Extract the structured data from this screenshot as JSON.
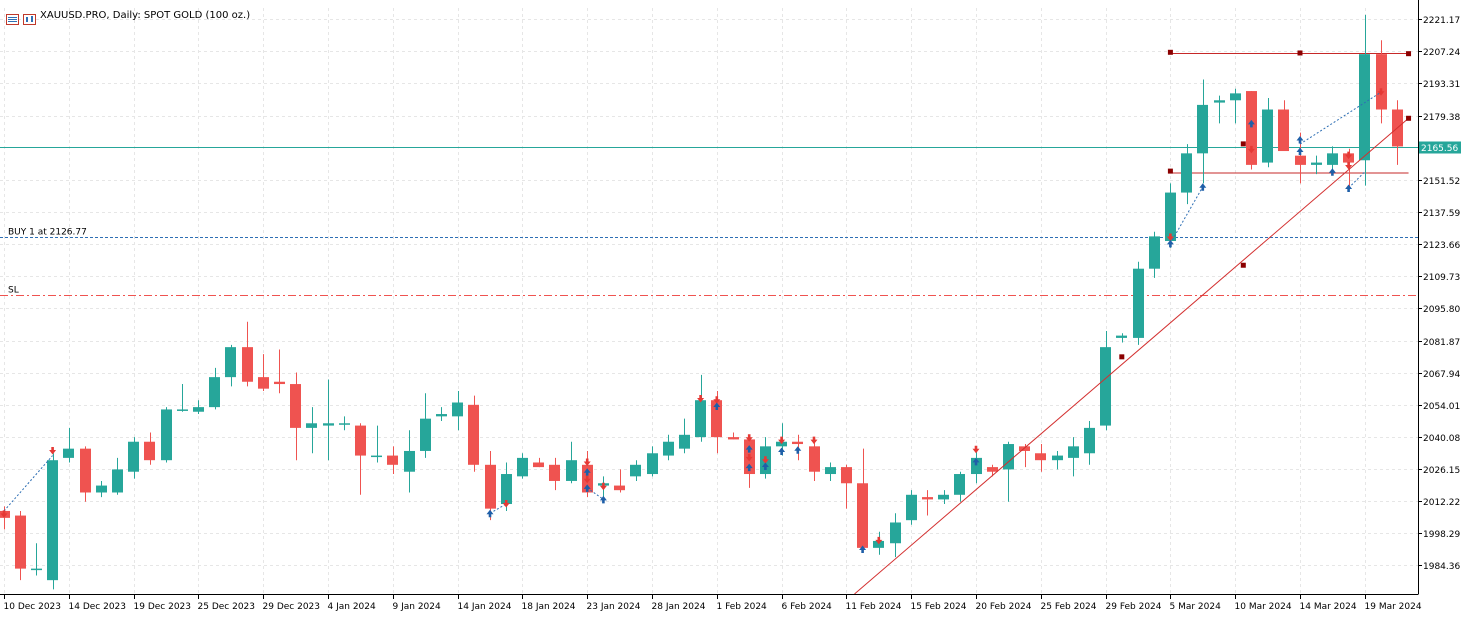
{
  "window": {
    "title": "XAUUSD.PRO, Daily:  SPOT GOLD (100 oz.)"
  },
  "icons": [
    "chart-window-icon",
    "chart-type-icon"
  ],
  "colors": {
    "bull": "#26a69a",
    "bear": "#ef5350",
    "grid": "#e6e6e6",
    "price_line": "#26a69a",
    "buy_line": "#2e6fb4",
    "sl_line": "#ef5350",
    "trendline": "#d32f2f",
    "level_line": "#c62828",
    "axis": "#000000"
  },
  "chart_data": {
    "type": "candlestick",
    "symbol": "XAUUSD.PRO",
    "timeframe": "Daily",
    "ylim": [
      1972,
      2226
    ],
    "y_ticks": [
      "2221.17",
      "2207.24",
      "2193.31",
      "2179.38",
      "2165.56",
      "2151.52",
      "2137.59",
      "2123.66",
      "2109.73",
      "2095.80",
      "2081.87",
      "2067.94",
      "2054.01",
      "2040.08",
      "2026.15",
      "2012.22",
      "1998.29",
      "1984.36"
    ],
    "x_ticks": [
      {
        "label": "10 Dec 2023",
        "index": 0
      },
      {
        "label": "14 Dec 2023",
        "index": 4
      },
      {
        "label": "19 Dec 2023",
        "index": 8
      },
      {
        "label": "25 Dec 2023",
        "index": 12
      },
      {
        "label": "29 Dec 2023",
        "index": 16
      },
      {
        "label": "4 Jan 2024",
        "index": 20
      },
      {
        "label": "9 Jan 2024",
        "index": 24
      },
      {
        "label": "14 Jan 2024",
        "index": 28
      },
      {
        "label": "18 Jan 2024",
        "index": 32
      },
      {
        "label": "23 Jan 2024",
        "index": 36
      },
      {
        "label": "28 Jan 2024",
        "index": 40
      },
      {
        "label": "1 Feb 2024",
        "index": 44
      },
      {
        "label": "6 Feb 2024",
        "index": 48
      },
      {
        "label": "11 Feb 2024",
        "index": 52
      },
      {
        "label": "15 Feb 2024",
        "index": 56
      },
      {
        "label": "20 Feb 2024",
        "index": 60
      },
      {
        "label": "25 Feb 2024",
        "index": 64
      },
      {
        "label": "29 Feb 2024",
        "index": 68
      },
      {
        "label": "5 Mar 2024",
        "index": 72
      },
      {
        "label": "10 Mar 2024",
        "index": 76
      },
      {
        "label": "14 Mar 2024",
        "index": 80
      },
      {
        "label": "19 Mar 2024",
        "index": 84
      }
    ],
    "candles": [
      [
        2008,
        2010,
        2000,
        2005
      ],
      [
        2006,
        2008,
        1978,
        1983
      ],
      [
        1983,
        1994,
        1980,
        1983
      ],
      [
        1978,
        2033,
        1974,
        2030
      ],
      [
        2031,
        2044,
        2029,
        2035
      ],
      [
        2035,
        2036,
        2012,
        2016
      ],
      [
        2016,
        2021,
        2014,
        2019
      ],
      [
        2016,
        2031,
        2015,
        2026
      ],
      [
        2025,
        2040,
        2022,
        2038
      ],
      [
        2038,
        2042,
        2028,
        2030
      ],
      [
        2030,
        2053,
        2029,
        2052
      ],
      [
        2052,
        2063,
        2051,
        2052
      ],
      [
        2051,
        2056,
        2050,
        2053
      ],
      [
        2053,
        2070,
        2052,
        2066
      ],
      [
        2066,
        2080,
        2062,
        2079
      ],
      [
        2079,
        2090,
        2062,
        2064
      ],
      [
        2066,
        2076,
        2060,
        2061
      ],
      [
        2064,
        2078,
        2059,
        2063
      ],
      [
        2063,
        2068,
        2030,
        2044
      ],
      [
        2044,
        2053,
        2033,
        2046
      ],
      [
        2045,
        2065,
        2030,
        2046
      ],
      [
        2046,
        2049,
        2043,
        2046
      ],
      [
        2045,
        2046,
        2015,
        2032
      ],
      [
        2032,
        2045,
        2029,
        2032
      ],
      [
        2032,
        2036,
        2024,
        2028
      ],
      [
        2025,
        2043,
        2016,
        2034
      ],
      [
        2034,
        2059,
        2031,
        2048
      ],
      [
        2049,
        2053,
        2047,
        2050
      ],
      [
        2049,
        2060,
        2043,
        2055
      ],
      [
        2054,
        2058,
        2025,
        2028
      ],
      [
        2028,
        2034,
        2004,
        2009
      ],
      [
        2011,
        2029,
        2008,
        2024
      ],
      [
        2023,
        2033,
        2022,
        2031
      ],
      [
        2029,
        2031,
        2027,
        2027
      ],
      [
        2028,
        2031,
        2017,
        2021
      ],
      [
        2021,
        2038,
        2020,
        2030
      ],
      [
        2028,
        2034,
        2014,
        2016
      ],
      [
        2019,
        2023,
        2014,
        2020
      ],
      [
        2019,
        2026,
        2016,
        2017
      ],
      [
        2023,
        2030,
        2021,
        2028
      ],
      [
        2024,
        2036,
        2023,
        2033
      ],
      [
        2032,
        2041,
        2030,
        2038
      ],
      [
        2035,
        2048,
        2033,
        2041
      ],
      [
        2040,
        2067,
        2038,
        2056
      ],
      [
        2056,
        2060,
        2033,
        2040
      ],
      [
        2040,
        2042,
        2039,
        2039
      ],
      [
        2039,
        2041,
        2018,
        2024
      ],
      [
        2024,
        2040,
        2022,
        2036
      ],
      [
        2036,
        2046,
        2032,
        2038
      ],
      [
        2038,
        2041,
        2030,
        2037
      ],
      [
        2036,
        2039,
        2021,
        2025
      ],
      [
        2024,
        2029,
        2021,
        2027
      ],
      [
        2027,
        2028,
        2009,
        2020
      ],
      [
        2020,
        2035,
        1991,
        1992
      ],
      [
        1992,
        1999,
        1989,
        1995
      ],
      [
        1994,
        2007,
        1988,
        2003
      ],
      [
        2004,
        2017,
        2002,
        2015
      ],
      [
        2014,
        2017,
        2006,
        2013
      ],
      [
        2013,
        2017,
        2011,
        2015
      ],
      [
        2015,
        2025,
        2012,
        2024
      ],
      [
        2024,
        2036,
        2020,
        2031
      ],
      [
        2027,
        2028,
        2023,
        2025
      ],
      [
        2026,
        2038,
        2012,
        2037
      ],
      [
        2036,
        2037,
        2027,
        2034
      ],
      [
        2033,
        2037,
        2025,
        2030
      ],
      [
        2030,
        2034,
        2026,
        2032
      ],
      [
        2031,
        2040,
        2023,
        2036
      ],
      [
        2033,
        2047,
        2028,
        2044
      ],
      [
        2045,
        2086,
        2043,
        2079
      ],
      [
        2083,
        2085,
        2081,
        2084
      ],
      [
        2083,
        2116,
        2080,
        2113
      ],
      [
        2113,
        2129,
        2109,
        2127
      ],
      [
        2125,
        2150,
        2122,
        2146
      ],
      [
        2146,
        2167,
        2141,
        2163
      ],
      [
        2163,
        2195,
        2150,
        2184
      ],
      [
        2185,
        2188,
        2176,
        2186
      ],
      [
        2186,
        2191,
        2176,
        2189
      ],
      [
        2190,
        2190,
        2156,
        2158
      ],
      [
        2159,
        2187,
        2157,
        2182
      ],
      [
        2182,
        2186,
        2164,
        2164
      ],
      [
        2162,
        2172,
        2150,
        2158
      ],
      [
        2158,
        2162,
        2154,
        2159
      ],
      [
        2158,
        2166,
        2155,
        2163
      ],
      [
        2163,
        2165,
        2148,
        2159
      ],
      [
        2160,
        2223,
        2149,
        2206
      ],
      [
        2206,
        2212,
        2176,
        2182
      ],
      [
        2182,
        2186,
        2158,
        2166
      ]
    ],
    "price_line": {
      "value": 2165.56,
      "label": "2165.56"
    },
    "buy_line": {
      "value": 2126.77,
      "label": "BUY 1 at 2126.77"
    },
    "sl_line": {
      "value": 2101.5,
      "label": "SL"
    },
    "trendline": {
      "from": {
        "index": 52.5,
        "value": 1972
      },
      "to": {
        "index": 86.7,
        "value": 2178.2
      }
    },
    "levels": [
      {
        "from_index": 72,
        "to_index": 86.7,
        "value": 2206.3
      },
      {
        "from_index": 72,
        "to_index": 86.7,
        "value": 2154.5
      }
    ],
    "level_points": [
      {
        "index": 72,
        "value": 2206.8
      },
      {
        "index": 80,
        "value": 2206.5
      },
      {
        "index": 86.7,
        "value": 2206.2
      },
      {
        "index": 72,
        "value": 2155.3
      },
      {
        "index": 76.5,
        "value": 2167.1
      },
      {
        "index": 76.5,
        "value": 2114.5
      },
      {
        "index": 69,
        "value": 2074.8
      },
      {
        "index": 86.7,
        "value": 2178.2
      }
    ],
    "trade_markers": [
      {
        "index": 0,
        "value": 2006.5,
        "side": "sell"
      },
      {
        "index": 3,
        "value": 2034.0,
        "side": "sell"
      },
      {
        "index": 30,
        "value": 2007.0,
        "side": "buy"
      },
      {
        "index": 31,
        "value": 2011.0,
        "side": "sell"
      },
      {
        "index": 36,
        "value": 2029.0,
        "side": "sell"
      },
      {
        "index": 36,
        "value": 2025.0,
        "side": "buy"
      },
      {
        "index": 36,
        "value": 2021.5,
        "side": "sell"
      },
      {
        "index": 36,
        "value": 2018.0,
        "side": "buy"
      },
      {
        "index": 37,
        "value": 2018.5,
        "side": "sell"
      },
      {
        "index": 37,
        "value": 2013.0,
        "side": "buy"
      },
      {
        "index": 43,
        "value": 2056.5,
        "side": "sell"
      },
      {
        "index": 44,
        "value": 2056.0,
        "side": "sell"
      },
      {
        "index": 44,
        "value": 2053.5,
        "side": "buy"
      },
      {
        "index": 46,
        "value": 2039.5,
        "side": "sell"
      },
      {
        "index": 46,
        "value": 2035.0,
        "side": "buy"
      },
      {
        "index": 46,
        "value": 2031.0,
        "side": "sell"
      },
      {
        "index": 46,
        "value": 2027.0,
        "side": "buy"
      },
      {
        "index": 47,
        "value": 2030.0,
        "side": "sell"
      },
      {
        "index": 47,
        "value": 2027.5,
        "side": "buy"
      },
      {
        "index": 48,
        "value": 2038.5,
        "side": "sell"
      },
      {
        "index": 48,
        "value": 2034.0,
        "side": "buy"
      },
      {
        "index": 49,
        "value": 2034.5,
        "side": "buy"
      },
      {
        "index": 50,
        "value": 2038.5,
        "side": "sell"
      },
      {
        "index": 53,
        "value": 1991.5,
        "side": "buy"
      },
      {
        "index": 54,
        "value": 1995.0,
        "side": "sell"
      },
      {
        "index": 60,
        "value": 2034.5,
        "side": "sell"
      },
      {
        "index": 60,
        "value": 2029.5,
        "side": "buy"
      },
      {
        "index": 72,
        "value": 2126.5,
        "side": "sell"
      },
      {
        "index": 72,
        "value": 2124.0,
        "side": "buy"
      },
      {
        "index": 74,
        "value": 2148.5,
        "side": "buy"
      },
      {
        "index": 77,
        "value": 2176.0,
        "side": "buy"
      },
      {
        "index": 77,
        "value": 2164.5,
        "side": "sell"
      },
      {
        "index": 80,
        "value": 2169.0,
        "side": "buy"
      },
      {
        "index": 80,
        "value": 2164.0,
        "side": "buy"
      },
      {
        "index": 82,
        "value": 2155.0,
        "side": "buy"
      },
      {
        "index": 83,
        "value": 2148.0,
        "side": "buy"
      },
      {
        "index": 83,
        "value": 2162.0,
        "side": "sell"
      },
      {
        "index": 83,
        "value": 2157.5,
        "side": "sell"
      },
      {
        "index": 85,
        "value": 2189.5,
        "side": "sell"
      }
    ],
    "trade_links": [
      {
        "from": {
          "index": 0,
          "value": 2008
        },
        "to": {
          "index": 3,
          "value": 2032
        }
      },
      {
        "from": {
          "index": 30,
          "value": 2007
        },
        "to": {
          "index": 31,
          "value": 2011
        }
      },
      {
        "from": {
          "index": 36,
          "value": 2018
        },
        "to": {
          "index": 37,
          "value": 2013
        }
      },
      {
        "from": {
          "index": 72,
          "value": 2124
        },
        "to": {
          "index": 74,
          "value": 2148.5
        }
      },
      {
        "from": {
          "index": 80,
          "value": 2167
        },
        "to": {
          "index": 85,
          "value": 2189.5
        }
      },
      {
        "from": {
          "index": 83,
          "value": 2148
        },
        "to": {
          "index": 84,
          "value": 2155
        }
      }
    ]
  }
}
